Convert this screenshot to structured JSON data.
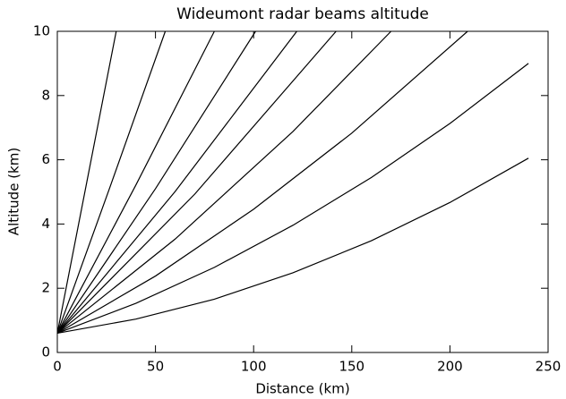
{
  "chart_data": {
    "type": "line",
    "title": "Wideumont radar beams altitude",
    "x_label": "Distance (km)",
    "y_label": "Altitude (km)",
    "xlim": [
      0,
      250
    ],
    "xticks": [
      0,
      50,
      100,
      150,
      200,
      250
    ],
    "ylim": [
      0,
      10
    ],
    "yticks": [
      0,
      2,
      4,
      6,
      8,
      10
    ],
    "grid": false,
    "series": [
      {
        "color": "#000000",
        "x": [
          0,
          40,
          80,
          120,
          160,
          200,
          240
        ],
        "values": [
          0.6,
          1.04,
          1.66,
          2.48,
          3.48,
          4.67,
          6.05
        ]
      },
      {
        "color": "#000000",
        "x": [
          0,
          40,
          80,
          120,
          160,
          200,
          240
        ],
        "values": [
          0.6,
          1.53,
          2.65,
          3.96,
          5.45,
          7.13,
          9.0
        ]
      },
      {
        "color": "#000000",
        "x": [
          0,
          50,
          100,
          150,
          209
        ],
        "values": [
          0.6,
          2.38,
          4.46,
          6.83,
          10
        ]
      },
      {
        "color": "#000000",
        "x": [
          0,
          60,
          120,
          170
        ],
        "values": [
          0.6,
          3.53,
          6.88,
          10
        ]
      },
      {
        "color": "#000000",
        "x": [
          0,
          70,
          142
        ],
        "values": [
          0.6,
          4.93,
          10
        ]
      },
      {
        "color": "#000000",
        "x": [
          0,
          60,
          122
        ],
        "values": [
          0.6,
          5.01,
          10
        ]
      },
      {
        "color": "#000000",
        "x": [
          0,
          50,
          101
        ],
        "values": [
          0.6,
          5.1,
          10
        ]
      },
      {
        "color": "#000000",
        "x": [
          0,
          40,
          80
        ],
        "values": [
          0.6,
          5.21,
          10
        ]
      },
      {
        "color": "#000000",
        "x": [
          0,
          27,
          55
        ],
        "values": [
          0.6,
          5.18,
          10
        ]
      },
      {
        "color": "#000000",
        "x": [
          0,
          30
        ],
        "values": [
          0.6,
          10
        ]
      }
    ]
  }
}
